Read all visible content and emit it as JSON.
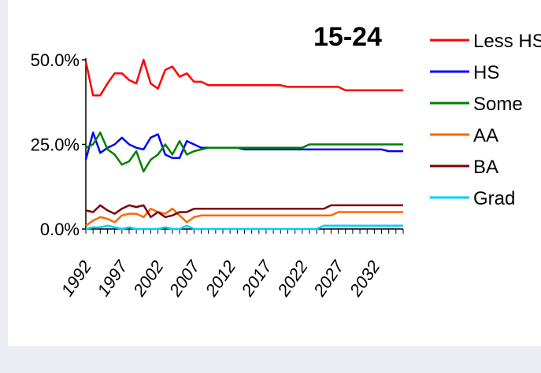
{
  "chart_data": {
    "type": "line",
    "title": "15-24",
    "xlabel": "",
    "ylabel": "",
    "x": [
      1992,
      1993,
      1994,
      1995,
      1996,
      1997,
      1998,
      1999,
      2000,
      2001,
      2002,
      2003,
      2004,
      2005,
      2006,
      2007,
      2008,
      2009,
      2010,
      2011,
      2012,
      2013,
      2014,
      2015,
      2016,
      2017,
      2018,
      2019,
      2020,
      2021,
      2022,
      2023,
      2024,
      2025,
      2026,
      2027,
      2028,
      2029,
      2030,
      2031,
      2032,
      2033,
      2034,
      2035,
      2036
    ],
    "xticks": [
      "1992",
      "1997",
      "2002",
      "2007",
      "2012",
      "2017",
      "2022",
      "2027",
      "2032"
    ],
    "xtick_values": [
      1992,
      1997,
      2002,
      2007,
      2012,
      2017,
      2022,
      2027,
      2032
    ],
    "xlim": [
      1992,
      2036
    ],
    "ylim": [
      0,
      50
    ],
    "yticks": [
      "0.0%",
      "25.0%",
      "50.0%"
    ],
    "ytick_values": [
      0,
      25,
      50
    ],
    "grid": false,
    "legend_position": "right",
    "series": [
      {
        "name": "Less HS",
        "color": "#ff0000",
        "values": [
          49.5,
          39.5,
          39.5,
          43,
          46,
          46,
          44,
          43,
          50,
          43,
          41.5,
          47,
          48,
          45,
          46,
          43.5,
          43.5,
          42.5,
          42.5,
          42.5,
          42.5,
          42.5,
          42.5,
          42.5,
          42.5,
          42.5,
          42.5,
          42.5,
          42,
          42,
          42,
          42,
          42,
          42,
          42,
          42,
          41,
          41,
          41,
          41,
          41,
          41,
          41,
          41,
          41
        ]
      },
      {
        "name": "HS",
        "color": "#0000ff",
        "values": [
          20.5,
          28.5,
          22.5,
          24,
          25,
          27,
          25,
          24,
          23.5,
          27,
          28,
          22,
          21,
          21,
          26,
          25,
          24,
          24,
          24,
          24,
          24,
          24,
          23.5,
          23.5,
          23.5,
          23.5,
          23.5,
          23.5,
          23.5,
          23.5,
          23.5,
          23.5,
          23.5,
          23.5,
          23.5,
          23.5,
          23.5,
          23.5,
          23.5,
          23.5,
          23.5,
          23.5,
          23,
          23,
          23
        ]
      },
      {
        "name": "Some",
        "color": "#008000",
        "values": [
          24,
          25,
          28.5,
          23.5,
          22,
          19,
          20,
          23,
          17,
          20.5,
          22,
          25,
          22,
          26,
          22,
          23,
          23.5,
          24,
          24,
          24,
          24,
          24,
          24,
          24,
          24,
          24,
          24,
          24,
          24,
          24,
          24,
          25,
          25,
          25,
          25,
          25,
          25,
          25,
          25,
          25,
          25,
          25,
          25,
          25,
          25
        ]
      },
      {
        "name": "AA",
        "color": "#ff6600",
        "values": [
          1,
          2.5,
          3.5,
          3,
          2,
          4,
          4.5,
          4.5,
          3.5,
          6,
          5,
          4.5,
          6,
          4,
          2,
          3.5,
          4,
          4,
          4,
          4,
          4,
          4,
          4,
          4,
          4,
          4,
          4,
          4,
          4,
          4,
          4,
          4,
          4,
          4,
          4,
          5,
          5,
          5,
          5,
          5,
          5,
          5,
          5,
          5,
          5
        ]
      },
      {
        "name": "BA",
        "color": "#800000",
        "values": [
          5.5,
          5,
          7,
          5.5,
          4.5,
          6,
          7,
          6.5,
          7,
          3.5,
          5,
          3.5,
          4,
          5,
          5,
          6,
          6,
          6,
          6,
          6,
          6,
          6,
          6,
          6,
          6,
          6,
          6,
          6,
          6,
          6,
          6,
          6,
          6,
          6,
          7,
          7,
          7,
          7,
          7,
          7,
          7,
          7,
          7,
          7,
          7
        ]
      },
      {
        "name": "Grad",
        "color": "#00ccff",
        "values": [
          0,
          0.5,
          0.5,
          1,
          0.5,
          0,
          0.5,
          0,
          0,
          0,
          0,
          0.5,
          0,
          0,
          1,
          0,
          0,
          0,
          0,
          0,
          0,
          0,
          0,
          0,
          0,
          0,
          0,
          0,
          0,
          0,
          0,
          0,
          0,
          1,
          1,
          1,
          1,
          1,
          1,
          1,
          1,
          1,
          1,
          1,
          1
        ]
      }
    ]
  }
}
